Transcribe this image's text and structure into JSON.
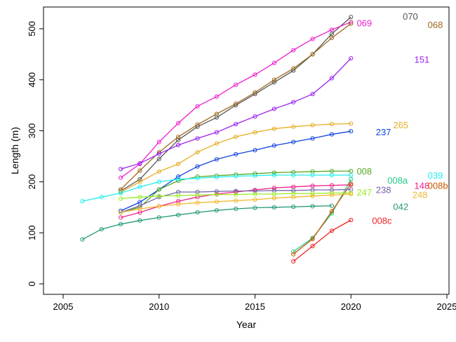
{
  "chart_data": {
    "type": "line",
    "title": "",
    "xlabel": "Year",
    "ylabel": "Length (m)",
    "xlim": [
      2005,
      2025
    ],
    "ylim": [
      0,
      520
    ],
    "xticks": [
      "2005",
      "2010",
      "2015",
      "2020",
      "2025"
    ],
    "yticks": [
      "0",
      "100",
      "200",
      "300",
      "400",
      "500"
    ],
    "grid": false,
    "series": [
      {
        "name": "070",
        "color": "#555555",
        "labelX": 2022.7,
        "labelY": 525,
        "x": [
          2008,
          2009,
          2010,
          2011,
          2012,
          2013,
          2014,
          2015,
          2016,
          2017,
          2018,
          2019,
          2020
        ],
        "y": [
          182,
          205,
          245,
          282,
          308,
          326,
          350,
          372,
          395,
          418,
          450,
          490,
          523
        ]
      },
      {
        "name": "069",
        "color": "#ee22cc",
        "labelX": 2020.3,
        "labelY": 512,
        "x": [
          2008,
          2009,
          2010,
          2011,
          2012,
          2013,
          2014,
          2015,
          2016,
          2017,
          2018,
          2019,
          2020
        ],
        "y": [
          208,
          235,
          278,
          315,
          348,
          367,
          390,
          410,
          433,
          458,
          480,
          498,
          513
        ]
      },
      {
        "name": "068",
        "color": "#9b6a1f",
        "labelX": 2024.0,
        "labelY": 508,
        "x": [
          2008,
          2009,
          2010,
          2011,
          2012,
          2013,
          2014,
          2015,
          2016,
          2017,
          2018,
          2019,
          2020
        ],
        "y": [
          185,
          222,
          258,
          288,
          312,
          333,
          353,
          375,
          400,
          422,
          450,
          482,
          510
        ]
      },
      {
        "name": "151",
        "color": "#9a22ee",
        "labelX": 2023.3,
        "labelY": 440,
        "x": [
          2008,
          2009,
          2010,
          2011,
          2012,
          2013,
          2014,
          2015,
          2016,
          2017,
          2018,
          2019,
          2020
        ],
        "y": [
          225,
          236,
          255,
          272,
          285,
          297,
          313,
          328,
          343,
          356,
          372,
          403,
          442
        ]
      },
      {
        "name": "265",
        "color": "#e6ac22",
        "labelX": 2022.2,
        "labelY": 312,
        "x": [
          2008,
          2009,
          2010,
          2011,
          2012,
          2013,
          2014,
          2015,
          2016,
          2017,
          2018,
          2019,
          2020
        ],
        "y": [
          180,
          200,
          220,
          235,
          258,
          275,
          288,
          297,
          304,
          308,
          311,
          313,
          314
        ]
      },
      {
        "name": "237",
        "color": "#1144dd",
        "labelX": 2021.3,
        "labelY": 298,
        "x": [
          2008,
          2009,
          2010,
          2011,
          2012,
          2013,
          2014,
          2015,
          2016,
          2017,
          2018,
          2019,
          2020
        ],
        "y": [
          143,
          160,
          185,
          210,
          230,
          244,
          254,
          262,
          271,
          278,
          285,
          293,
          299
        ]
      },
      {
        "name": "008",
        "color": "#55aa22",
        "labelX": 2020.3,
        "labelY": 221,
        "x": [
          2008,
          2009,
          2010,
          2011,
          2012,
          2013,
          2014,
          2015,
          2016,
          2017,
          2018,
          2019,
          2020
        ],
        "y": [
          140,
          150,
          185,
          202,
          210,
          212,
          214,
          216,
          218,
          219,
          220,
          221,
          221
        ]
      },
      {
        "name": "039",
        "color": "#22eeee",
        "labelX": 2024.0,
        "labelY": 213,
        "x": [
          2006,
          2007,
          2008,
          2009,
          2010,
          2011,
          2012,
          2013,
          2014,
          2015,
          2016,
          2017,
          2018,
          2019,
          2020
        ],
        "y": [
          162,
          170,
          178,
          190,
          200,
          205,
          207,
          209,
          211,
          212,
          213,
          213,
          213,
          213,
          213
        ]
      },
      {
        "name": "008a",
        "color": "#22cc88",
        "labelX": 2021.9,
        "labelY": 203,
        "x": [
          2017,
          2018,
          2019,
          2020
        ],
        "y": [
          63,
          90,
          138,
          205
        ]
      },
      {
        "name": "148",
        "color": "#ee2288",
        "labelX": 2023.3,
        "labelY": 193,
        "x": [
          2008,
          2009,
          2010,
          2011,
          2012,
          2013,
          2014,
          2015,
          2016,
          2017,
          2018,
          2019,
          2020
        ],
        "y": [
          130,
          140,
          152,
          162,
          170,
          176,
          180,
          184,
          188,
          190,
          192,
          193,
          194
        ]
      },
      {
        "name": "008b",
        "color": "#cc5500",
        "labelX": 2024.0,
        "labelY": 193,
        "x": [
          2017,
          2018,
          2019,
          2020
        ],
        "y": [
          58,
          88,
          142,
          196
        ]
      },
      {
        "name": "238",
        "color": "#7766aa",
        "labelX": 2021.3,
        "labelY": 185,
        "x": [
          2008,
          2009,
          2010,
          2011,
          2012,
          2013,
          2014,
          2015,
          2016,
          2017,
          2018,
          2019,
          2020
        ],
        "y": [
          140,
          153,
          170,
          180,
          180,
          181,
          182,
          182,
          183,
          183,
          184,
          184,
          185
        ]
      },
      {
        "name": "247",
        "color": "#99ee22",
        "labelX": 2020.3,
        "labelY": 180,
        "x": [
          2008,
          2009,
          2010,
          2011,
          2012,
          2013,
          2014,
          2015,
          2016,
          2017,
          2018,
          2019,
          2020
        ],
        "y": [
          167,
          170,
          172,
          173,
          174,
          175,
          175,
          176,
          176,
          177,
          177,
          178,
          178
        ]
      },
      {
        "name": "248",
        "color": "#f0b830",
        "labelX": 2023.2,
        "labelY": 175,
        "x": [
          2008,
          2009,
          2010,
          2011,
          2012,
          2013,
          2014,
          2015,
          2016,
          2017,
          2018,
          2019,
          2020
        ],
        "y": [
          140,
          147,
          152,
          156,
          159,
          161,
          163,
          165,
          168,
          170,
          172,
          174,
          176
        ]
      },
      {
        "name": "042",
        "color": "#229977",
        "labelX": 2022.2,
        "labelY": 152,
        "x": [
          2006,
          2007,
          2008,
          2009,
          2010,
          2011,
          2012,
          2013,
          2014,
          2015,
          2016,
          2017,
          2018,
          2019
        ],
        "y": [
          87,
          107,
          117,
          124,
          130,
          135,
          140,
          144,
          147,
          149,
          150,
          151,
          152,
          153
        ]
      },
      {
        "name": "008c",
        "color": "#ee2222",
        "labelX": 2021.1,
        "labelY": 124,
        "x": [
          2017,
          2018,
          2019,
          2020
        ],
        "y": [
          44,
          74,
          104,
          125
        ]
      }
    ]
  }
}
